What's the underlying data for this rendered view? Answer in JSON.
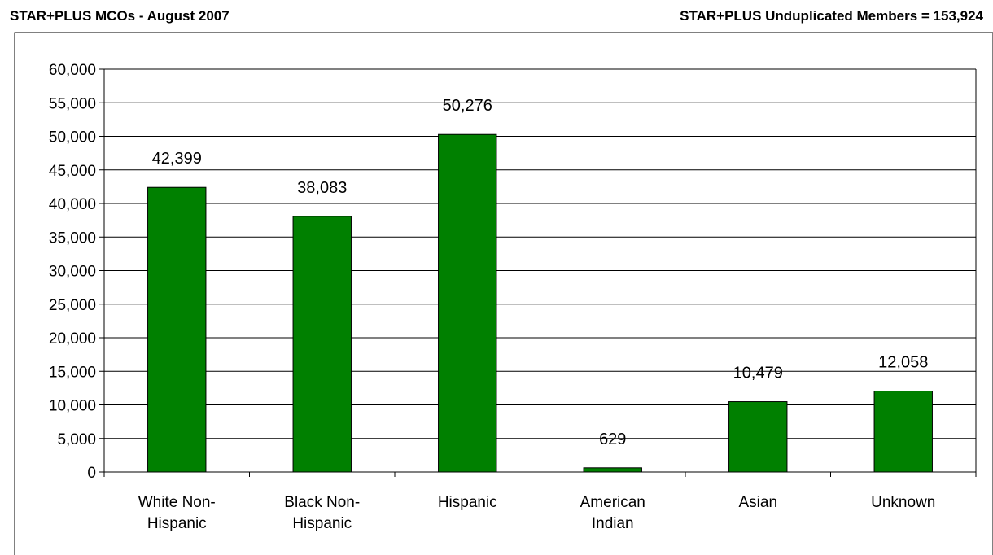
{
  "header": {
    "left_title": "STAR+PLUS MCOs - August 2007",
    "right_title": "STAR+PLUS Unduplicated Members = 153,924"
  },
  "chart_data": {
    "type": "bar",
    "categories": [
      [
        "White Non-",
        "Hispanic"
      ],
      [
        "Black Non-",
        "Hispanic"
      ],
      [
        "Hispanic"
      ],
      [
        "American",
        "Indian"
      ],
      [
        "Asian"
      ],
      [
        "Unknown"
      ]
    ],
    "values": [
      42399,
      38083,
      50276,
      629,
      10479,
      12058
    ],
    "data_labels": [
      "42,399",
      "38,083",
      "50,276",
      "629",
      "10,479",
      "12,058"
    ],
    "yticks": [
      0,
      5000,
      10000,
      15000,
      20000,
      25000,
      30000,
      35000,
      40000,
      45000,
      50000,
      55000,
      60000
    ],
    "ytick_labels": [
      "0",
      "5,000",
      "10,000",
      "15,000",
      "20,000",
      "25,000",
      "30,000",
      "35,000",
      "40,000",
      "45,000",
      "50,000",
      "55,000",
      "60,000"
    ],
    "ylim": [
      0,
      60000
    ],
    "grid": true,
    "bar_color": "#008000",
    "title": "",
    "xlabel": "",
    "ylabel": ""
  }
}
